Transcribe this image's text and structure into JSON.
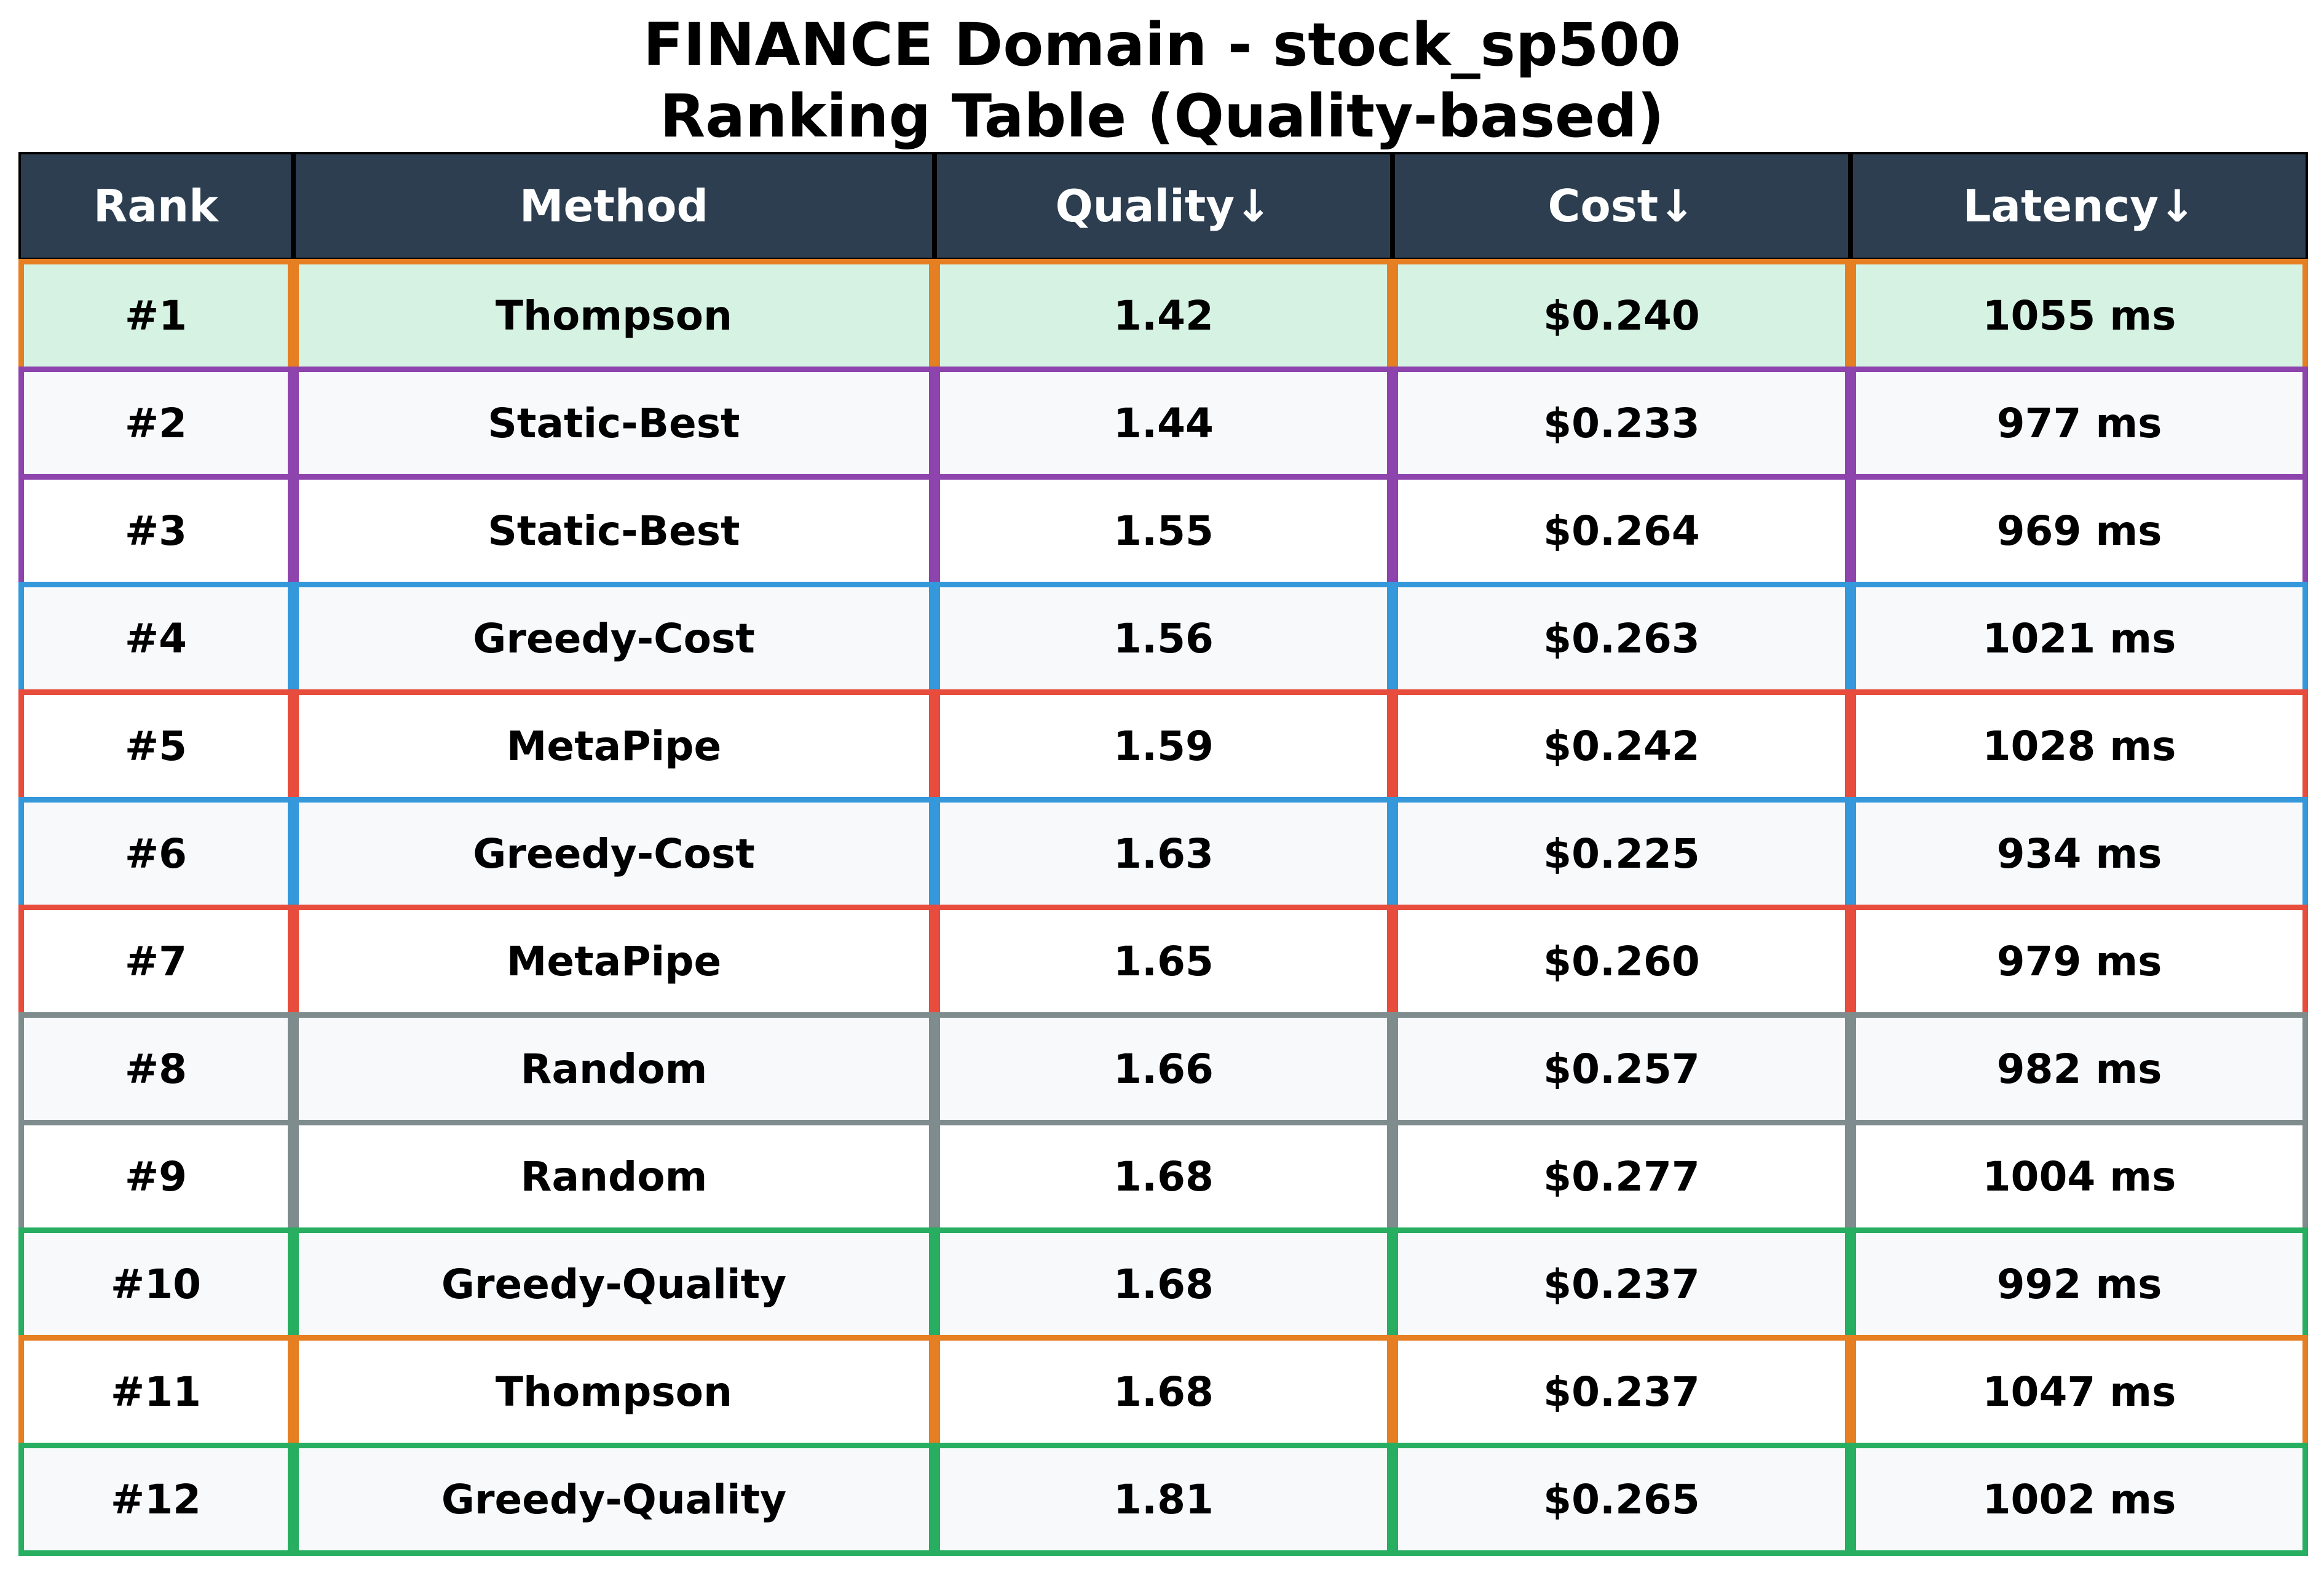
{
  "title": {
    "line1": "FINANCE Domain - stock_sp500",
    "line2": "Ranking Table (Quality-based)"
  },
  "colors": {
    "header_bg": "#2c3e50",
    "header_text": "#ffffff",
    "top_row_bg": "#d5f2e3",
    "even_row_bg": "#f7f9fb",
    "odd_row_bg": "#ffffff",
    "methods": {
      "Thompson": "#e67e22",
      "Static-Best": "#8e44ad",
      "Greedy-Cost": "#3498db",
      "MetaPipe": "#e74c3c",
      "Random": "#7f8c8d",
      "Greedy-Quality": "#27ae60"
    }
  },
  "chart_data": {
    "type": "table",
    "title": "FINANCE Domain - stock_sp500\nRanking Table (Quality-based)",
    "columns": [
      "Rank",
      "Method",
      "Quality↓",
      "Cost↓",
      "Latency↓"
    ],
    "rows": [
      [
        "#1",
        "Thompson",
        "1.42",
        "$0.240",
        "1055 ms"
      ],
      [
        "#2",
        "Static-Best",
        "1.44",
        "$0.233",
        "977 ms"
      ],
      [
        "#3",
        "Static-Best",
        "1.55",
        "$0.264",
        "969 ms"
      ],
      [
        "#4",
        "Greedy-Cost",
        "1.56",
        "$0.263",
        "1021 ms"
      ],
      [
        "#5",
        "MetaPipe",
        "1.59",
        "$0.242",
        "1028 ms"
      ],
      [
        "#6",
        "Greedy-Cost",
        "1.63",
        "$0.225",
        "934 ms"
      ],
      [
        "#7",
        "MetaPipe",
        "1.65",
        "$0.260",
        "979 ms"
      ],
      [
        "#8",
        "Random",
        "1.66",
        "$0.257",
        "982 ms"
      ],
      [
        "#9",
        "Random",
        "1.68",
        "$0.277",
        "1004 ms"
      ],
      [
        "#10",
        "Greedy-Quality",
        "1.68",
        "$0.237",
        "992 ms"
      ],
      [
        "#11",
        "Thompson",
        "1.68",
        "$0.237",
        "1047 ms"
      ],
      [
        "#12",
        "Greedy-Quality",
        "1.81",
        "$0.265",
        "1002 ms"
      ]
    ]
  }
}
